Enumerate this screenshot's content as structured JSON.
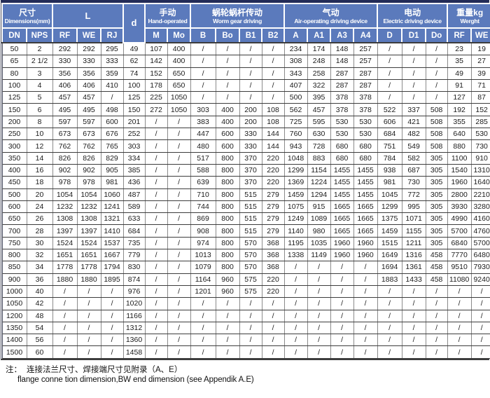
{
  "colors": {
    "header_bg": "#5b7abc",
    "header_text": "#ffffff",
    "top_bar": "#232c58",
    "grid_dark": "#3d3d3d",
    "grid_light": "#8a8a8a",
    "body_text": "#1b1b1b"
  },
  "table": {
    "groups": {
      "dimensions": {
        "cn": "尺寸",
        "en": "Dimensions(mm)"
      },
      "l": {
        "label": "L"
      },
      "d": {
        "label": "d"
      },
      "hand": {
        "cn": "手动",
        "en": "Hand-operated"
      },
      "worm": {
        "cn": "蜗轮蜗杆传动",
        "en": "Worm gear driving"
      },
      "air": {
        "cn": "气动",
        "en": "Air-operating driving device"
      },
      "electric": {
        "cn": "电动",
        "en": "Electric driving device"
      },
      "weight": {
        "cn": "重量kg",
        "en": "Werght"
      }
    },
    "sub_columns": [
      "DN",
      "NPS",
      "RF",
      "WE",
      "RJ",
      "M",
      "Mo",
      "B",
      "Bo",
      "B1",
      "B2",
      "A",
      "A1",
      "A3",
      "A4",
      "D",
      "D1",
      "Do",
      "RF",
      "WE"
    ],
    "rows": [
      [
        "50",
        "2",
        "292",
        "292",
        "295",
        "49",
        "107",
        "400",
        "/",
        "/",
        "/",
        "/",
        "234",
        "174",
        "148",
        "257",
        "/",
        "/",
        "/",
        "23",
        "19"
      ],
      [
        "65",
        "2 1/2",
        "330",
        "330",
        "333",
        "62",
        "142",
        "400",
        "/",
        "/",
        "/",
        "/",
        "308",
        "248",
        "148",
        "257",
        "/",
        "/",
        "/",
        "35",
        "27"
      ],
      [
        "80",
        "3",
        "356",
        "356",
        "359",
        "74",
        "152",
        "650",
        "/",
        "/",
        "/",
        "/",
        "343",
        "258",
        "287",
        "287",
        "/",
        "/",
        "/",
        "49",
        "39"
      ],
      [
        "100",
        "4",
        "406",
        "406",
        "410",
        "100",
        "178",
        "650",
        "/",
        "/",
        "/",
        "/",
        "407",
        "322",
        "287",
        "287",
        "/",
        "/",
        "/",
        "91",
        "71"
      ],
      [
        "125",
        "5",
        "457",
        "457",
        "/",
        "125",
        "225",
        "1050",
        "/",
        "/",
        "/",
        "/",
        "500",
        "395",
        "378",
        "378",
        "/",
        "/",
        "/",
        "127",
        "87"
      ],
      [
        "150",
        "6",
        "495",
        "495",
        "498",
        "150",
        "272",
        "1050",
        "303",
        "400",
        "200",
        "108",
        "562",
        "457",
        "378",
        "378",
        "522",
        "337",
        "508",
        "192",
        "152"
      ],
      [
        "200",
        "8",
        "597",
        "597",
        "600",
        "201",
        "/",
        "/",
        "383",
        "400",
        "200",
        "108",
        "725",
        "595",
        "530",
        "530",
        "606",
        "421",
        "508",
        "355",
        "285"
      ],
      [
        "250",
        "10",
        "673",
        "673",
        "676",
        "252",
        "/",
        "/",
        "447",
        "600",
        "330",
        "144",
        "760",
        "630",
        "530",
        "530",
        "684",
        "482",
        "508",
        "640",
        "530"
      ],
      [
        "300",
        "12",
        "762",
        "762",
        "765",
        "303",
        "/",
        "/",
        "480",
        "600",
        "330",
        "144",
        "943",
        "728",
        "680",
        "680",
        "751",
        "549",
        "508",
        "880",
        "730"
      ],
      [
        "350",
        "14",
        "826",
        "826",
        "829",
        "334",
        "/",
        "/",
        "517",
        "800",
        "370",
        "220",
        "1048",
        "883",
        "680",
        "680",
        "784",
        "582",
        "305",
        "1100",
        "910"
      ],
      [
        "400",
        "16",
        "902",
        "902",
        "905",
        "385",
        "/",
        "/",
        "588",
        "800",
        "370",
        "220",
        "1299",
        "1154",
        "1455",
        "1455",
        "938",
        "687",
        "305",
        "1540",
        "1310"
      ],
      [
        "450",
        "18",
        "978",
        "978",
        "981",
        "436",
        "/",
        "/",
        "639",
        "800",
        "370",
        "220",
        "1369",
        "1224",
        "1455",
        "1455",
        "981",
        "730",
        "305",
        "1960",
        "1640"
      ],
      [
        "500",
        "20",
        "1054",
        "1054",
        "1060",
        "487",
        "/",
        "/",
        "710",
        "800",
        "515",
        "279",
        "1459",
        "1294",
        "1455",
        "1455",
        "1045",
        "772",
        "305",
        "2800",
        "2210"
      ],
      [
        "600",
        "24",
        "1232",
        "1232",
        "1241",
        "589",
        "/",
        "/",
        "744",
        "800",
        "515",
        "279",
        "1075",
        "915",
        "1665",
        "1665",
        "1299",
        "995",
        "305",
        "3930",
        "3280"
      ],
      [
        "650",
        "26",
        "1308",
        "1308",
        "1321",
        "633",
        "/",
        "/",
        "869",
        "800",
        "515",
        "279",
        "1249",
        "1089",
        "1665",
        "1665",
        "1375",
        "1071",
        "305",
        "4990",
        "4160"
      ],
      [
        "700",
        "28",
        "1397",
        "1397",
        "1410",
        "684",
        "/",
        "/",
        "908",
        "800",
        "515",
        "279",
        "1140",
        "980",
        "1665",
        "1665",
        "1459",
        "1155",
        "305",
        "5700",
        "4760"
      ],
      [
        "750",
        "30",
        "1524",
        "1524",
        "1537",
        "735",
        "/",
        "/",
        "974",
        "800",
        "570",
        "368",
        "1195",
        "1035",
        "1960",
        "1960",
        "1515",
        "1211",
        "305",
        "6840",
        "5700"
      ],
      [
        "800",
        "32",
        "1651",
        "1651",
        "1667",
        "779",
        "/",
        "/",
        "1013",
        "800",
        "570",
        "368",
        "1338",
        "1149",
        "1960",
        "1960",
        "1649",
        "1316",
        "458",
        "7770",
        "6480"
      ],
      [
        "850",
        "34",
        "1778",
        "1778",
        "1794",
        "830",
        "/",
        "/",
        "1079",
        "800",
        "570",
        "368",
        "/",
        "/",
        "/",
        "/",
        "1694",
        "1361",
        "458",
        "9510",
        "7930"
      ],
      [
        "900",
        "36",
        "1880",
        "1880",
        "1895",
        "874",
        "/",
        "/",
        "1164",
        "960",
        "575",
        "220",
        "/",
        "/",
        "/",
        "/",
        "1883",
        "1433",
        "458",
        "11080",
        "9240"
      ],
      [
        "1000",
        "40",
        "/",
        "/",
        "/",
        "976",
        "/",
        "/",
        "1201",
        "960",
        "575",
        "220",
        "/",
        "/",
        "/",
        "/",
        "/",
        "/",
        "/",
        "/",
        "/"
      ],
      [
        "1050",
        "42",
        "/",
        "/",
        "/",
        "1020",
        "/",
        "/",
        "/",
        "/",
        "/",
        "/",
        "/",
        "/",
        "/",
        "/",
        "/",
        "/",
        "/",
        "/",
        "/"
      ],
      [
        "1200",
        "48",
        "/",
        "/",
        "/",
        "1166",
        "/",
        "/",
        "/",
        "/",
        "/",
        "/",
        "/",
        "/",
        "/",
        "/",
        "/",
        "/",
        "/",
        "/",
        "/"
      ],
      [
        "1350",
        "54",
        "/",
        "/",
        "/",
        "1312",
        "/",
        "/",
        "/",
        "/",
        "/",
        "/",
        "/",
        "/",
        "/",
        "/",
        "/",
        "/",
        "/",
        "/",
        "/"
      ],
      [
        "1400",
        "56",
        "/",
        "/",
        "/",
        "1360",
        "/",
        "/",
        "/",
        "/",
        "/",
        "/",
        "/",
        "/",
        "/",
        "/",
        "/",
        "/",
        "/",
        "/",
        "/"
      ],
      [
        "1500",
        "60",
        "/",
        "/",
        "/",
        "1458",
        "/",
        "/",
        "/",
        "/",
        "/",
        "/",
        "/",
        "/",
        "/",
        "/",
        "/",
        "/",
        "/",
        "/",
        "/"
      ]
    ]
  },
  "note": {
    "prefix": "注：",
    "cn": "连接法兰尺寸、焊接端尺寸见附录（A、E）",
    "en": "flange conne tion dimension,BW end dimension (see Appendik A.E)"
  }
}
